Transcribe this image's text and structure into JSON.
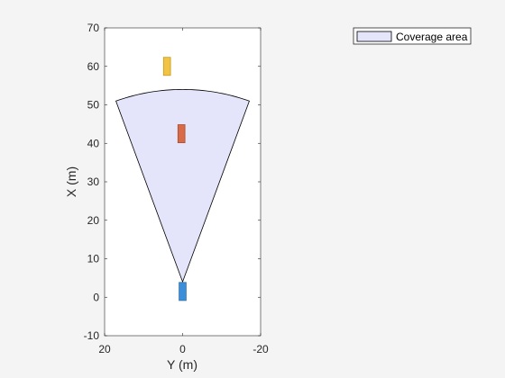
{
  "chart_data": {
    "type": "scatter",
    "title": "",
    "xlabel": "Y (m)",
    "ylabel": "X (m)",
    "xlim": [
      20,
      -20
    ],
    "ylim": [
      -10,
      70
    ],
    "x_ticks": [
      20,
      0,
      -20
    ],
    "y_ticks": [
      -10,
      0,
      10,
      20,
      30,
      40,
      50,
      60,
      70
    ],
    "x_direction": "reversed",
    "grid": false,
    "legend": {
      "placement": "top-right, outside axes",
      "entries": [
        {
          "label": "Coverage area",
          "fill": "#e4e4fa",
          "edge": "#000000"
        }
      ]
    },
    "coverage_area": {
      "name": "Coverage area",
      "apex": {
        "y": 0,
        "x": 4
      },
      "range_m": 50,
      "half_angle_deg": 20,
      "fill": "#e4e4fa",
      "edge": "#000000"
    },
    "vehicles": [
      {
        "name": "ego",
        "y_center": 0,
        "x_center": 1.5,
        "width": 1.8,
        "length": 4.7,
        "color": "#3d8ed8",
        "edge": "#2e6fa8"
      },
      {
        "name": "target-1",
        "y_center": 0.3,
        "x_center": 42.5,
        "width": 1.8,
        "length": 4.7,
        "color": "#d96a47",
        "edge": "#a6502f"
      },
      {
        "name": "target-2",
        "y_center": 4,
        "x_center": 60,
        "width": 1.8,
        "length": 4.7,
        "color": "#f2c445",
        "edge": "#c79a1e"
      }
    ]
  }
}
